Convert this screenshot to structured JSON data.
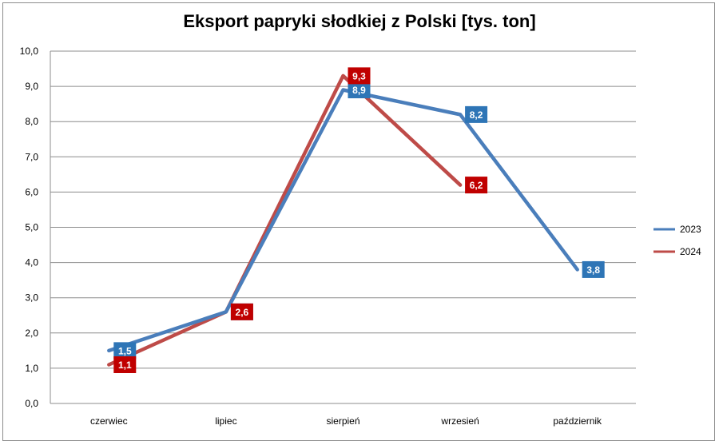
{
  "chart_data": {
    "type": "line",
    "title": "Eksport papryki słodkiej z Polski [tys. ton]",
    "categories": [
      "czerwiec",
      "lipiec",
      "sierpień",
      "wrzesień",
      "październik"
    ],
    "ylim": [
      0,
      10
    ],
    "yticks": [
      "0,0",
      "1,0",
      "2,0",
      "3,0",
      "4,0",
      "5,0",
      "6,0",
      "7,0",
      "8,0",
      "9,0",
      "10,0"
    ],
    "grid": true,
    "legend_position": "right",
    "series": [
      {
        "name": "2023",
        "color": "#4a7ebb",
        "label_bg": "#2e75b6",
        "values": [
          1.5,
          2.6,
          8.9,
          8.2,
          3.8
        ],
        "labels": [
          "1,5",
          "2,6",
          "8,9",
          "8,2",
          "3,8"
        ]
      },
      {
        "name": "2024",
        "color": "#be4b48",
        "label_bg": "#c00000",
        "values": [
          1.1,
          2.6,
          9.3,
          6.2,
          null
        ],
        "labels": [
          "1,1",
          "2,6",
          "9,3",
          "6,2",
          null
        ]
      }
    ]
  }
}
